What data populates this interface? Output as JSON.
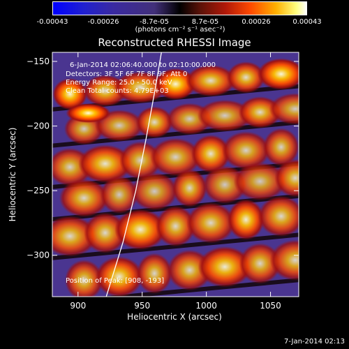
{
  "chart_data": {
    "type": "heatmap",
    "title": "Reconstructed RHESSI Image",
    "xlabel": "Heliocentric X (arcsec)",
    "ylabel": "Heliocentric Y (arcsec)",
    "xlim": [
      880,
      1072
    ],
    "ylim": [
      -332,
      -143
    ],
    "x_ticks": [
      900,
      950,
      1000,
      1050
    ],
    "y_ticks": [
      -150,
      -200,
      -250,
      -300
    ],
    "colorbar": {
      "ticks": [
        "-0.00043",
        "-0.00026",
        "-8.7e-05",
        "8.7e-05",
        "0.00026",
        "0.00043"
      ],
      "units": "(photons cm⁻² s⁻¹ asec⁻²)",
      "range": [
        -0.00043,
        0.00043
      ]
    },
    "annotations": {
      "time_range": "6-Jan-2014 02:06:40.000 to 02:10:00.000",
      "detectors": "Detectors: 3F 5F 6F 7F 8F 9F, Att 0",
      "energy": "Energy Range: 25.0 - 50.0 keV",
      "clean": "Clean    Total counts: 4.79E+03",
      "position": "Position of Peak: [908, -193]"
    },
    "limb_curve": [
      [
        922,
        -332
      ],
      [
        935,
        -290
      ],
      [
        945,
        -250
      ],
      [
        953,
        -210
      ],
      [
        960,
        -172
      ],
      [
        965,
        -143
      ]
    ],
    "bands": [
      {
        "x0": 880,
        "y0": -185,
        "x1": 1072,
        "y1": -150,
        "peak": 0.9
      },
      {
        "x0": 880,
        "y0": -213,
        "x1": 1072,
        "y1": -178,
        "peak": 0.6
      },
      {
        "x0": 880,
        "y0": -245,
        "x1": 1072,
        "y1": -203,
        "peak": 0.7
      },
      {
        "x0": 880,
        "y0": -270,
        "x1": 1072,
        "y1": -228,
        "peak": 0.55
      },
      {
        "x0": 880,
        "y0": -300,
        "x1": 1072,
        "y1": -255,
        "peak": 0.8
      },
      {
        "x0": 880,
        "y0": -335,
        "x1": 1072,
        "y1": -290,
        "peak": 0.75
      }
    ]
  },
  "timestamp": "7-Jan-2014 02:13"
}
